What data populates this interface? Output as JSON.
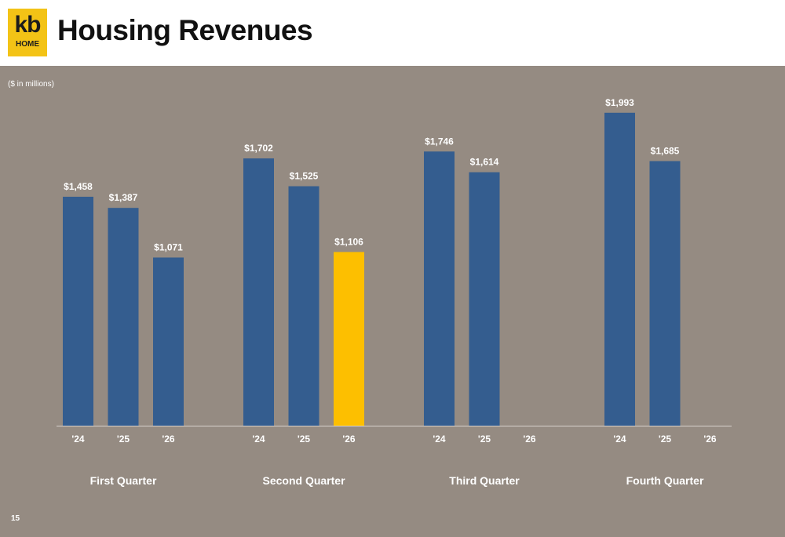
{
  "header": {
    "logo_top": "kb",
    "logo_bottom": "HOME",
    "title": "Housing Revenues"
  },
  "units_note": "($ in millions)",
  "page_number": "15",
  "colors": {
    "background": "#958b82",
    "bar_default": "#345d8f",
    "bar_highlight": "#fdbf00",
    "axis": "#d8d2cc",
    "text": "#ffffff"
  },
  "chart_data": {
    "type": "bar",
    "title": "Housing Revenues",
    "ylabel": "($ in millions)",
    "value_prefix": "$",
    "groups": [
      {
        "label": "First Quarter",
        "bars": [
          {
            "year": "'24",
            "value": 1458,
            "label": "$1,458"
          },
          {
            "year": "'25",
            "value": 1387,
            "label": "$1,387"
          },
          {
            "year": "'26",
            "value": 1071,
            "label": "$1,071"
          }
        ]
      },
      {
        "label": "Second Quarter",
        "bars": [
          {
            "year": "'24",
            "value": 1702,
            "label": "$1,702"
          },
          {
            "year": "'25",
            "value": 1525,
            "label": "$1,525"
          },
          {
            "year": "'26",
            "value": 1106,
            "label": "$1,106",
            "highlight": true
          }
        ]
      },
      {
        "label": "Third Quarter",
        "bars": [
          {
            "year": "'24",
            "value": 1746,
            "label": "$1,746"
          },
          {
            "year": "'25",
            "value": 1614,
            "label": "$1,614"
          },
          {
            "year": "'26",
            "value": null,
            "label": ""
          }
        ]
      },
      {
        "label": "Fourth Quarter",
        "bars": [
          {
            "year": "'24",
            "value": 1993,
            "label": "$1,993"
          },
          {
            "year": "'25",
            "value": 1685,
            "label": "$1,685"
          },
          {
            "year": "'26",
            "value": null,
            "label": ""
          }
        ]
      }
    ]
  }
}
